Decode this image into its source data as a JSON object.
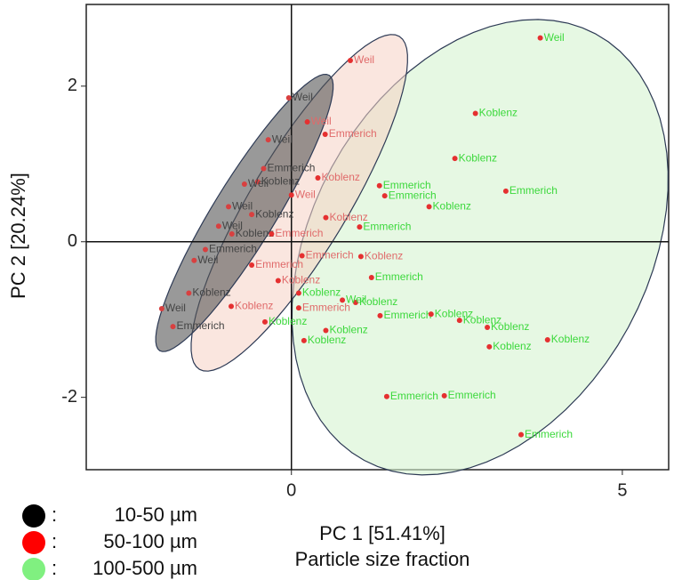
{
  "chart_data": {
    "type": "scatter",
    "x_label": "PC 1 [51.41%]",
    "x_sublabel": "Particle size fraction",
    "y_label": "PC 2 [20.24%]",
    "xlim": [
      -3.1,
      5.7
    ],
    "ylim": [
      -2.93,
      3.05
    ],
    "xticks": [
      0,
      5
    ],
    "yticks": [
      -2,
      0,
      2
    ],
    "zero_lines": true,
    "legend_separator": ":",
    "series": [
      {
        "name": "10-50 µm",
        "color": "#000000",
        "marker_color": "#d84040",
        "label_color": "#444444",
        "x": [
          -0.04,
          -0.35,
          -0.42,
          -0.51,
          -0.71,
          -1.79,
          -1.96,
          -1.55,
          -1.47,
          -0.9,
          -1.1,
          -1.3,
          -0.6,
          -0.95
        ],
        "y": [
          1.85,
          1.31,
          0.94,
          0.77,
          0.74,
          -1.09,
          -0.86,
          -0.66,
          -0.24,
          0.1,
          0.2,
          -0.1,
          0.35,
          0.45
        ],
        "labels": [
          "Weil",
          "Weil",
          "Emmerich",
          "Koblenz",
          "Weil",
          "Emmerich",
          "Weil",
          "Koblenz",
          "Weil",
          "Koblenz",
          "Weil",
          "Emmerich",
          "Koblenz",
          "Weil"
        ],
        "ellipse": {
          "center": [
            -0.71,
            0.37
          ],
          "axis_a": [
            1.28,
            1.77
          ],
          "axis_b": [
            0.4,
            -0.21
          ],
          "fill": "#555555",
          "opacity": 0.6,
          "stroke": "#2d3a55"
        }
      },
      {
        "name": "50-100 µm",
        "color": "#ff0000",
        "marker_color": "#e53030",
        "label_color": "#e06a6a",
        "x": [
          0.89,
          0.51,
          0.24,
          0.4,
          1.05,
          0.16,
          0.11,
          -0.91,
          0.52,
          -0.3,
          -0.2,
          -0.6,
          0.0
        ],
        "y": [
          2.33,
          1.38,
          1.54,
          0.82,
          -0.19,
          -0.18,
          -0.85,
          -0.83,
          0.31,
          0.1,
          -0.5,
          -0.3,
          0.6
        ],
        "labels": [
          "Weil",
          "Emmerich",
          "Weil",
          "Koblenz",
          "Koblenz",
          "Emmerich",
          "Emmerich",
          "Koblenz",
          "Koblenz",
          "Emmerich",
          "Koblenz",
          "Emmerich",
          "Weil"
        ],
        "ellipse": {
          "center": [
            0.12,
            0.5
          ],
          "axis_a": [
            1.51,
            2.14
          ],
          "axis_b": [
            0.63,
            -0.32
          ],
          "fill": "#f6d2c4",
          "opacity": 0.55,
          "stroke": "#2d3a55"
        }
      },
      {
        "name": "100-500 µm",
        "color": "#80f080",
        "marker_color": "#e53030",
        "label_color": "#3cd83c",
        "x": [
          3.76,
          2.78,
          2.47,
          3.24,
          1.33,
          1.41,
          2.08,
          1.03,
          1.21,
          0.97,
          1.34,
          2.11,
          2.54,
          2.96,
          2.99,
          3.87,
          0.52,
          0.19,
          -0.4,
          1.44,
          2.31,
          3.47,
          0.11,
          0.77
        ],
        "y": [
          2.62,
          1.65,
          1.07,
          0.65,
          0.72,
          0.59,
          0.45,
          0.19,
          -0.46,
          -0.78,
          -0.95,
          -0.93,
          -1.01,
          -1.1,
          -1.35,
          -1.26,
          -1.14,
          -1.27,
          -1.03,
          -1.99,
          -1.98,
          -2.48,
          -0.66,
          -0.75
        ],
        "labels": [
          "Weil",
          "Koblenz",
          "Koblenz",
          "Emmerich",
          "Emmerich",
          "Emmerich",
          "Koblenz",
          "Emmerich",
          "Emmerich",
          "Koblenz",
          "Emmerich",
          "Koblenz",
          "Koblenz",
          "Koblenz",
          "Koblenz",
          "Koblenz",
          "Koblenz",
          "Koblenz",
          "Koblenz",
          "Emmerich",
          "Emmerich",
          "Emmerich",
          "Koblenz",
          "Weil"
        ],
        "ellipse": {
          "center": [
            2.85,
            -0.07
          ],
          "axis_a": [
            1.75,
            2.74
          ],
          "axis_b": [
            2.24,
            -1.03
          ],
          "fill": "#d6f4d0",
          "opacity": 0.6,
          "stroke": "#2d3a55"
        }
      }
    ]
  }
}
